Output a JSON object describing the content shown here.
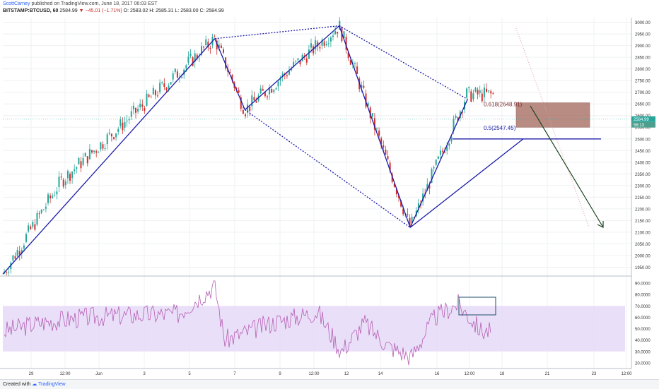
{
  "header": {
    "author": "ScottCarney",
    "published": "published on TradingView.com, June 18, 2017 06:03 EST",
    "symbol": "BITSTAMP:BTCUSD, 60",
    "last": "2584.99",
    "change": "▼ −45.01 (−1.71%)",
    "ohlc": "O: 2583.02  H: 2585.31  L: 2583.00  C: 2584.99"
  },
  "footer": {
    "created_with": "Created with",
    "brand": "TradingView"
  },
  "colors": {
    "up": "#26a69a",
    "down": "#d32f2f",
    "pattern": "#1a1aa8",
    "zone": "#a1655a",
    "rsi": "#b45fb4",
    "rsi_band": "#e6d9f7",
    "arrow": "#1e4420",
    "grid": "#eef0f3"
  },
  "chart_data": [
    {
      "type": "line",
      "title": "",
      "subtitle": "",
      "xlabel": "",
      "ylabel": "",
      "x_tick_labels": [
        "29",
        "12:00",
        "Jun",
        "3",
        "5",
        "7",
        "9",
        "12:00",
        "12",
        "14",
        "16",
        "12:00",
        "18",
        "21",
        "23",
        "12:00"
      ],
      "y_ticks": [
        1950,
        2000,
        2050,
        2100,
        2150,
        2200,
        2250,
        2300,
        2350,
        2400,
        2450,
        2500,
        2550,
        2600,
        2650,
        2700,
        2750,
        2800,
        2850,
        2900,
        2950,
        3000
      ],
      "y_tick_labels": [
        "1950.00",
        "2000.00",
        "2050.00",
        "2100.00",
        "2150.00",
        "2200.00",
        "2250.00",
        "2300.00",
        "2350.00",
        "2400.00",
        "2450.00",
        "2500.00",
        "2550.00",
        "2600.00",
        "2650.00",
        "2700.00",
        "2750.00",
        "2800.00",
        "2850.00",
        "2900.00",
        "2950.00",
        "3000.00"
      ],
      "ylim": [
        1915,
        3020
      ],
      "series": [
        {
          "name": "",
          "x": [
            "May 28 12:00",
            "May 31",
            "Jun 6 14:00",
            "Jun 7 21:00",
            "Jun 11 22:00",
            "Jun 14 23:00",
            "Jun 17 09:00"
          ],
          "values": [
            1920,
            2320,
            2930,
            2625,
            2985,
            2120,
            2690
          ]
        }
      ],
      "pattern_points": [
        {
          "x": "May 28 12:00",
          "y": 1920
        },
        {
          "x": "Jun 6 14:00",
          "y": 2930
        },
        {
          "x": "Jun 7 21:00",
          "y": 2625
        },
        {
          "x": "Jun 11 22:00",
          "y": 2985
        },
        {
          "x": "Jun 14 23:00",
          "y": 2120
        },
        {
          "x": "Jun 17 10:00",
          "y": 2670
        }
      ],
      "annotations": [
        {
          "text": "0.618(2648.91)",
          "y": 2648.91
        },
        {
          "text": "0.5(2547.45)",
          "y": 2547.45
        }
      ],
      "price_tags": [
        "2584.99",
        "56:13"
      ],
      "horizontal_line": 2500,
      "target_zone": [
        2550,
        2655
      ],
      "grid": true
    },
    {
      "type": "line",
      "title": "",
      "y_ticks": [
        20,
        30,
        40,
        50,
        60,
        70,
        80,
        90
      ],
      "y_tick_labels": [
        "20.0000",
        "30.0000",
        "40.0000",
        "50.0000",
        "60.0000",
        "70.0000",
        "80.0000",
        "90.0000"
      ],
      "ylim": [
        15,
        95
      ],
      "band": [
        30,
        70
      ],
      "series": [
        {
          "name": "",
          "x": [
            "May 28",
            "May 30",
            "Jun 1",
            "Jun 3",
            "Jun 5",
            "Jun 6 14:00",
            "Jun 7",
            "Jun 9",
            "Jun 11",
            "Jun 12",
            "Jun 13",
            "Jun 14",
            "Jun 15",
            "Jun 16",
            "Jun 17",
            "Jun 18"
          ],
          "values": [
            45,
            55,
            60,
            62,
            63,
            88,
            40,
            55,
            65,
            30,
            55,
            35,
            25,
            60,
            72,
            48
          ]
        }
      ]
    }
  ]
}
